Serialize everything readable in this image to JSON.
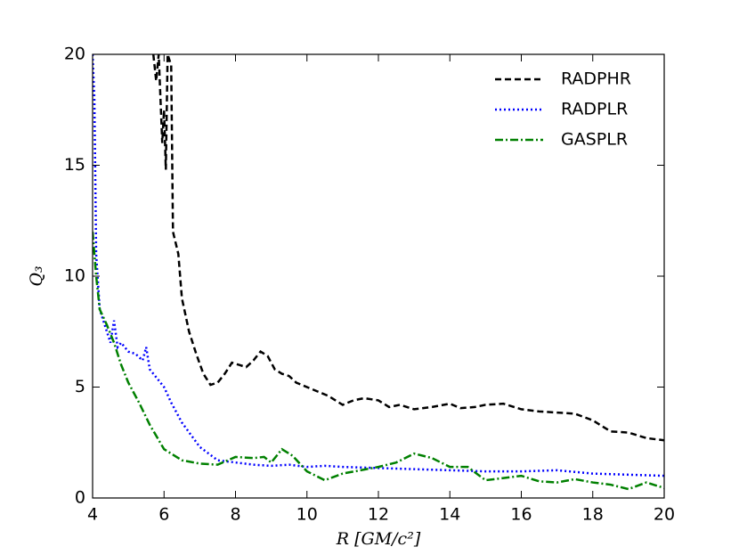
{
  "chart_data": {
    "type": "line",
    "xlabel": "R [GM/c²]",
    "ylabel": "Q₃",
    "xlim": [
      4,
      20
    ],
    "ylim": [
      0,
      20
    ],
    "xticks": [
      4,
      6,
      8,
      10,
      12,
      14,
      16,
      18,
      20
    ],
    "yticks": [
      0,
      5,
      10,
      15,
      20
    ],
    "legend": "upper right",
    "series": [
      {
        "name": "RADPHR",
        "color": "#000000",
        "style": "dashed",
        "x": [
          5.7,
          5.78,
          5.85,
          5.95,
          6.0,
          6.05,
          6.1,
          6.2,
          6.25,
          6.4,
          6.5,
          6.7,
          6.9,
          7.1,
          7.3,
          7.5,
          7.7,
          7.9,
          8.1,
          8.3,
          8.5,
          8.7,
          8.9,
          9.1,
          9.3,
          9.5,
          9.7,
          10,
          10.3,
          10.6,
          11,
          11.3,
          11.6,
          12,
          12.3,
          12.6,
          13,
          13.5,
          14,
          14.3,
          14.7,
          15,
          15.5,
          16,
          16.5,
          17,
          17.5,
          18,
          18.5,
          19,
          19.5,
          20
        ],
        "values": [
          20,
          18.8,
          20,
          16,
          17.5,
          14.8,
          20,
          19.5,
          12,
          11,
          9,
          7.5,
          6.5,
          5.6,
          5.1,
          5.2,
          5.6,
          6.1,
          6.0,
          5.9,
          6.2,
          6.6,
          6.4,
          5.8,
          5.6,
          5.5,
          5.2,
          5.0,
          4.8,
          4.6,
          4.2,
          4.4,
          4.5,
          4.4,
          4.1,
          4.2,
          4.0,
          4.1,
          4.25,
          4.05,
          4.1,
          4.2,
          4.25,
          4.0,
          3.9,
          3.85,
          3.8,
          3.5,
          3.0,
          2.95,
          2.7,
          2.6
        ]
      },
      {
        "name": "RADPLR",
        "color": "#0000ff",
        "style": "dotted",
        "x": [
          4.0,
          4.05,
          4.1,
          4.2,
          4.3,
          4.4,
          4.5,
          4.6,
          4.7,
          4.8,
          5,
          5.2,
          5.4,
          5.5,
          5.6,
          5.8,
          6,
          6.2,
          6.5,
          7,
          7.5,
          8,
          8.5,
          9,
          9.5,
          10,
          10.5,
          11,
          12,
          13,
          14,
          15,
          16,
          17,
          18,
          19,
          20
        ],
        "values": [
          20,
          18,
          11,
          8.5,
          8.0,
          7.5,
          7.0,
          8.0,
          6.8,
          7.0,
          6.6,
          6.5,
          6.2,
          6.8,
          5.8,
          5.4,
          5.0,
          4.3,
          3.4,
          2.3,
          1.7,
          1.6,
          1.5,
          1.45,
          1.5,
          1.4,
          1.45,
          1.4,
          1.35,
          1.3,
          1.25,
          1.2,
          1.2,
          1.25,
          1.1,
          1.05,
          1.0
        ]
      },
      {
        "name": "GASPLR",
        "color": "#008000",
        "style": "dashdot",
        "x": [
          4.0,
          4.1,
          4.2,
          4.4,
          4.6,
          4.8,
          5,
          5.3,
          5.6,
          6,
          6.5,
          7,
          7.5,
          8,
          8.5,
          8.8,
          9,
          9.3,
          9.6,
          10,
          10.5,
          11,
          11.5,
          12,
          12.5,
          13,
          13.5,
          14,
          14.5,
          15,
          15.5,
          16,
          16.5,
          17,
          17.5,
          18,
          18.5,
          19,
          19.5,
          20
        ],
        "values": [
          12,
          10,
          8.5,
          7.8,
          7.0,
          6.0,
          5.2,
          4.3,
          3.3,
          2.2,
          1.7,
          1.55,
          1.5,
          1.85,
          1.8,
          1.85,
          1.6,
          2.2,
          1.9,
          1.2,
          0.8,
          1.1,
          1.25,
          1.4,
          1.6,
          2.0,
          1.8,
          1.4,
          1.4,
          0.8,
          0.9,
          1.0,
          0.75,
          0.7,
          0.85,
          0.7,
          0.6,
          0.4,
          0.7,
          0.45
        ]
      }
    ]
  }
}
